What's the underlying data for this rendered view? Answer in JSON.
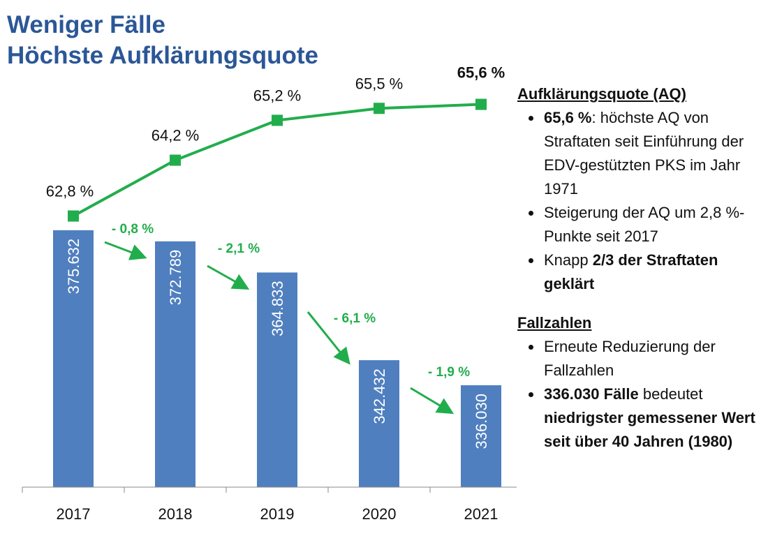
{
  "slide": {
    "title": [
      "Weniger Fälle",
      "Höchste Aufklärungsquote"
    ]
  },
  "chart_data": {
    "type": "combo",
    "categories": [
      "2017",
      "2018",
      "2019",
      "2020",
      "2021"
    ],
    "ylim": [
      310000,
      420000
    ],
    "y2lim": [
      56,
      66.8
    ],
    "series": [
      {
        "type": "bar",
        "color": "#4f7fbf",
        "values": [
          375632,
          372789,
          364833,
          342432,
          336030
        ],
        "value_labels": [
          "375.632",
          "372.789",
          "364.833",
          "342.432",
          "336.030"
        ]
      },
      {
        "type": "line",
        "axis": "y2",
        "color": "#22ad4c",
        "values": [
          62.8,
          64.2,
          65.2,
          65.5,
          65.6
        ],
        "value_labels": [
          "62,8 %",
          "64,2 %",
          "65,2 %",
          "65,5 %",
          "65,6 %"
        ]
      }
    ],
    "annotations": [
      "- 0,8 %",
      "- 2,1 %",
      "- 6,1 %",
      "- 1,9 %"
    ]
  },
  "panel": {
    "sections": [
      {
        "heading": "Aufklärungsquote (AQ)",
        "items": [
          [
            {
              "text": "65,6 %",
              "bold": true
            },
            {
              "text": ": höchste AQ von Straftaten seit Einführung der EDV-gestützten PKS im Jahr 1971",
              "bold": false
            }
          ],
          [
            {
              "text": "Steigerung der AQ um 2,8 %-Punkte seit 2017",
              "bold": false
            }
          ],
          [
            {
              "text": "Knapp ",
              "bold": false
            },
            {
              "text": "2/3 der Straftaten geklärt",
              "bold": true
            }
          ]
        ]
      },
      {
        "heading": "Fallzahlen",
        "items": [
          [
            {
              "text": "Erneute Reduzierung der Fallzahlen",
              "bold": false
            }
          ],
          [
            {
              "text": "336.030 Fälle",
              "bold": true
            },
            {
              "text": " bedeutet ",
              "bold": false
            },
            {
              "text": "niedrigster gemessener Wert seit über 40 Jahren (1980)",
              "bold": true
            }
          ]
        ]
      }
    ]
  }
}
